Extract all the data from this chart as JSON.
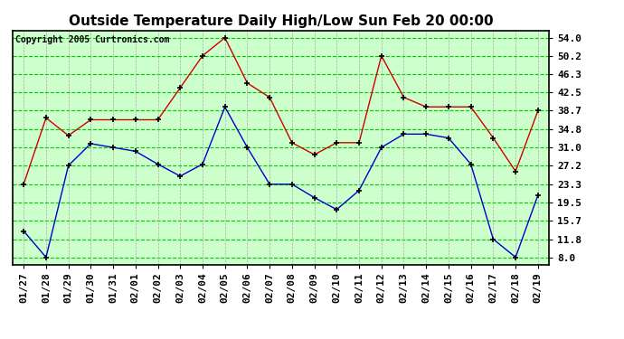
{
  "title": "Outside Temperature Daily High/Low Sun Feb 20 00:00",
  "copyright": "Copyright 2005 Curtronics.com",
  "x_labels": [
    "01/27",
    "01/28",
    "01/29",
    "01/30",
    "01/31",
    "02/01",
    "02/02",
    "02/03",
    "02/04",
    "02/05",
    "02/06",
    "02/07",
    "02/08",
    "02/09",
    "02/10",
    "02/11",
    "02/12",
    "02/13",
    "02/14",
    "02/15",
    "02/16",
    "02/17",
    "02/18",
    "02/19"
  ],
  "high_values": [
    23.3,
    37.2,
    33.5,
    36.8,
    36.8,
    36.8,
    36.8,
    43.5,
    50.2,
    54.0,
    44.5,
    41.5,
    32.0,
    29.5,
    32.0,
    32.0,
    50.2,
    41.5,
    39.5,
    39.5,
    39.5,
    33.0,
    26.0,
    38.7
  ],
  "low_values": [
    13.5,
    8.0,
    27.2,
    31.8,
    31.0,
    30.2,
    27.5,
    25.0,
    27.5,
    39.5,
    31.0,
    23.3,
    23.3,
    20.5,
    18.0,
    22.0,
    31.0,
    33.8,
    33.8,
    33.0,
    27.5,
    11.8,
    8.0,
    21.0
  ],
  "high_color": "#cc0000",
  "low_color": "#0000cc",
  "bg_color": "#ffffff",
  "plot_bg_color": "#ccffcc",
  "grid_color_h": "#00cc00",
  "grid_color_v": "#aaaaaa",
  "y_ticks": [
    8.0,
    11.8,
    15.7,
    19.5,
    23.3,
    27.2,
    31.0,
    34.8,
    38.7,
    42.5,
    46.3,
    50.2,
    54.0
  ],
  "ylim": [
    6.5,
    55.5
  ],
  "title_fontsize": 11,
  "copyright_fontsize": 7,
  "tick_fontsize": 8
}
